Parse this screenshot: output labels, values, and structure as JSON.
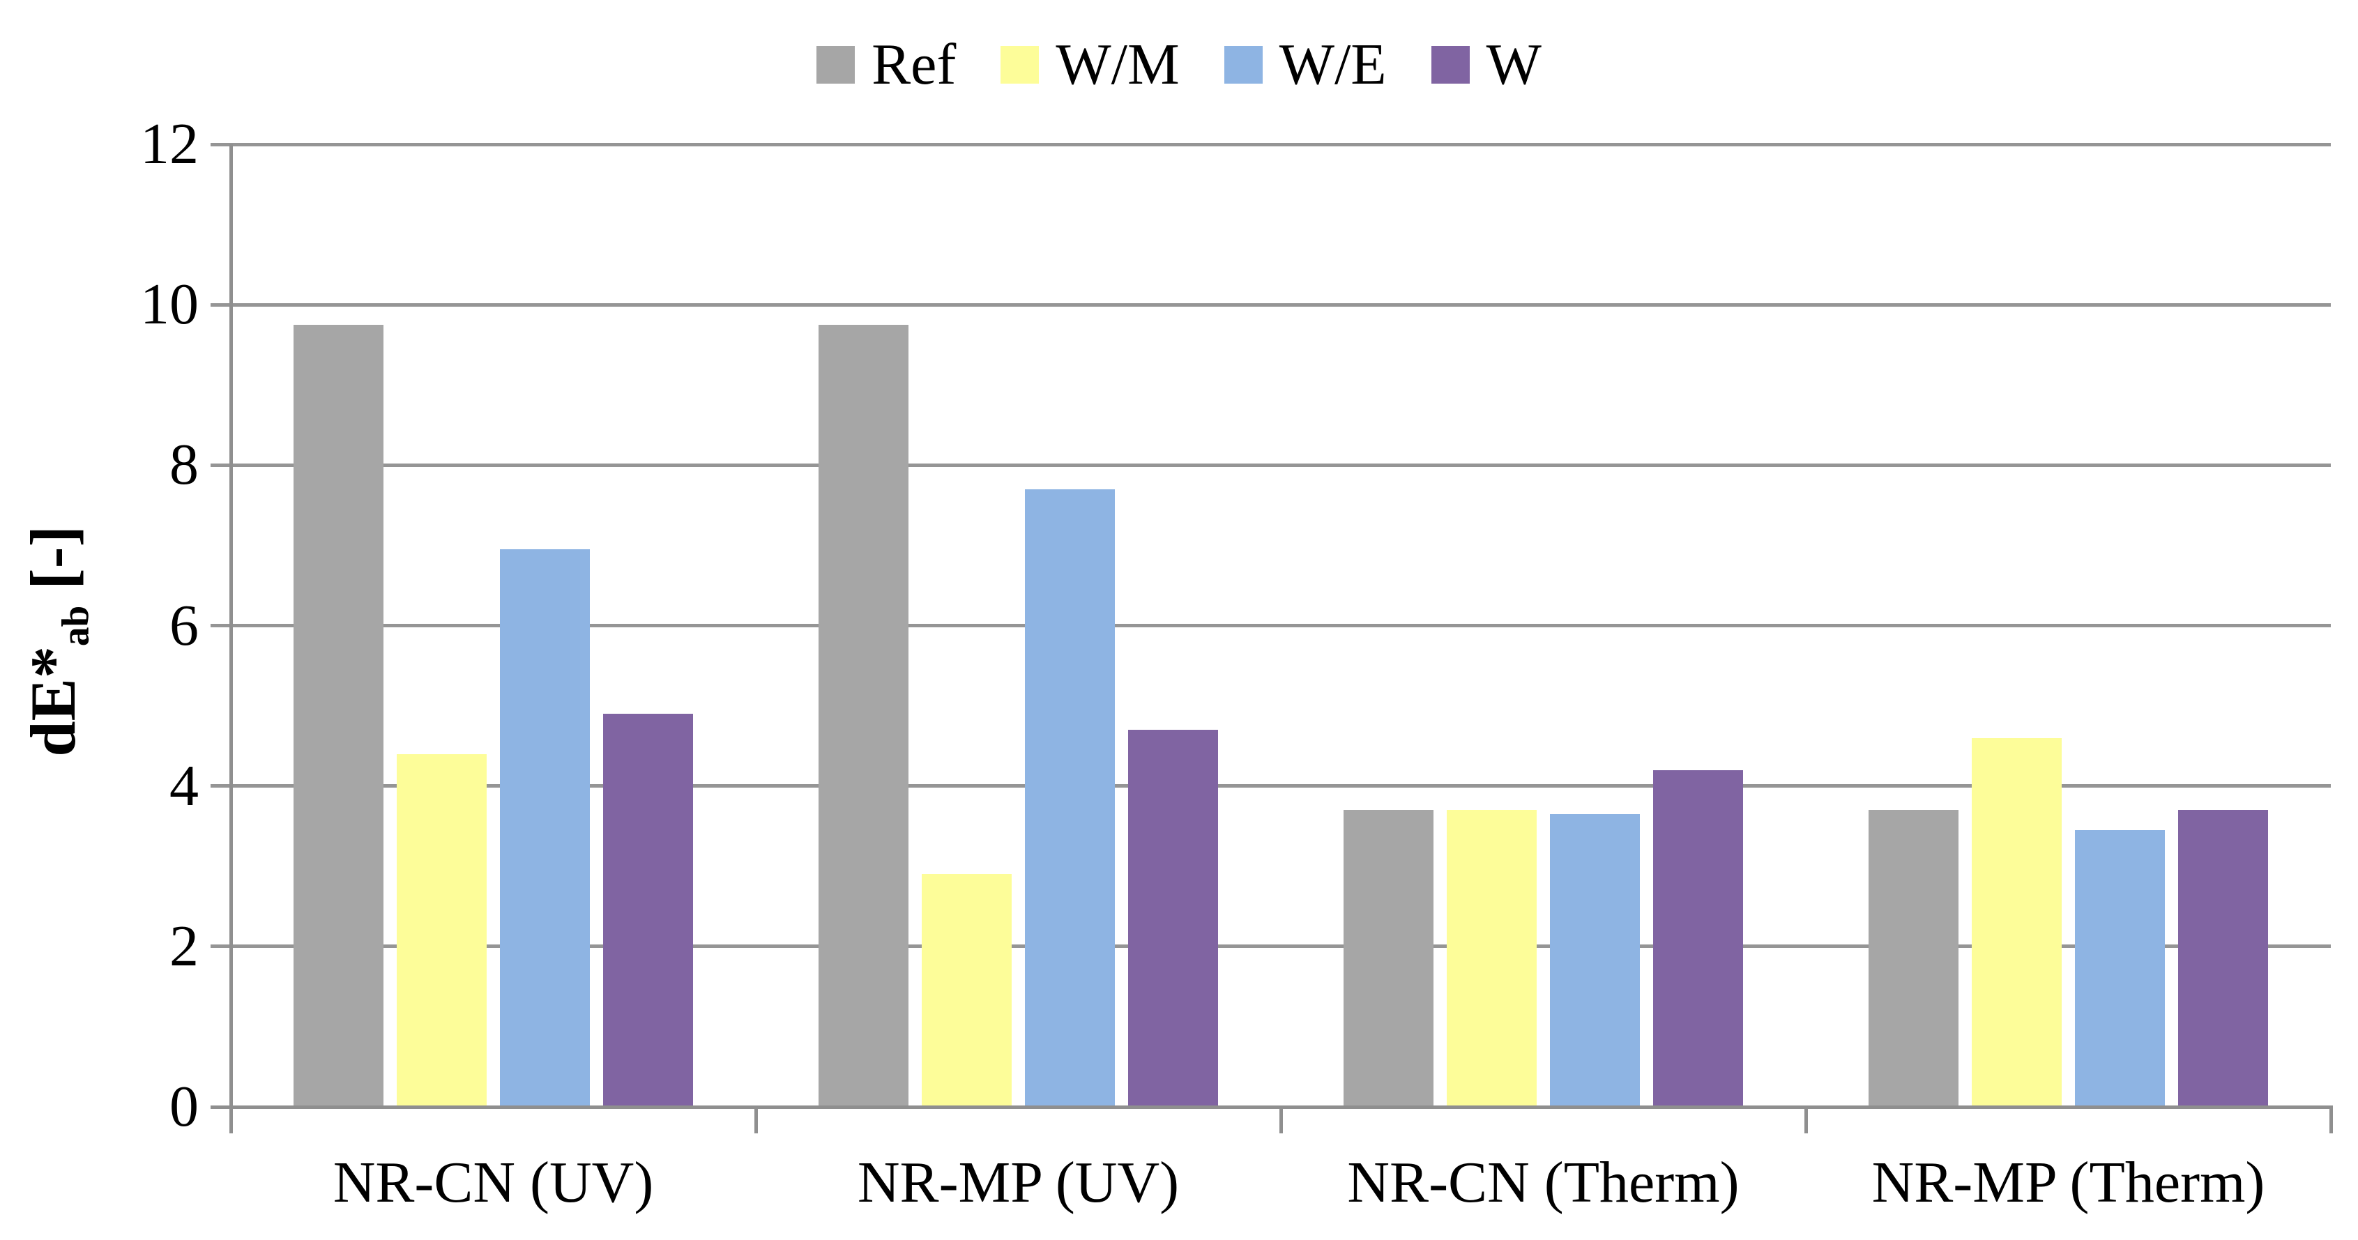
{
  "chart_data": {
    "type": "bar",
    "title": "",
    "categories": [
      "NR-CN (UV)",
      "NR-MP (UV)",
      "NR-CN (Therm)",
      "NR-MP (Therm)"
    ],
    "series": [
      {
        "name": "Ref",
        "color": "#A6A6A6",
        "values": [
          9.75,
          9.75,
          3.7,
          3.7
        ]
      },
      {
        "name": "W/M",
        "color": "#FDFD99",
        "values": [
          4.4,
          2.9,
          3.7,
          4.6
        ]
      },
      {
        "name": "W/E",
        "color": "#8EB4E3",
        "values": [
          6.95,
          7.7,
          3.65,
          3.45
        ]
      },
      {
        "name": "W",
        "color": "#8064A2",
        "values": [
          4.9,
          4.7,
          4.2,
          3.7
        ]
      }
    ],
    "ylabel": {
      "prefix": "dE*",
      "subscript": "ab",
      "suffix": " [-]"
    },
    "ylim": [
      0,
      12
    ],
    "yticks": [
      0,
      2,
      4,
      6,
      8,
      10,
      12
    ],
    "grid": true,
    "legend_position": "top",
    "gridline_color": "#959595",
    "axis_color": "#8F8F8F",
    "text_color": "#000000"
  }
}
